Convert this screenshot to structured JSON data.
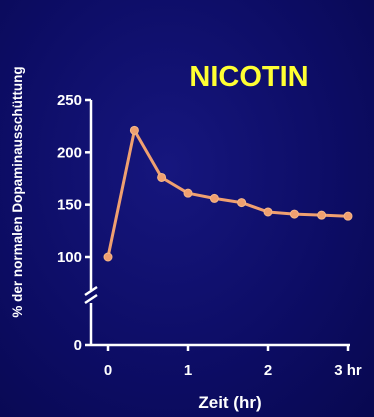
{
  "chart_data": {
    "type": "line",
    "title": "NICOTIN",
    "xlabel": "Zeit (hr)",
    "ylabel": "% der normalen Dopaminausschüttung",
    "x": [
      0,
      0.33,
      0.67,
      1.0,
      1.33,
      1.67,
      2.0,
      2.33,
      2.67,
      3.0
    ],
    "y": [
      100,
      221,
      176,
      161,
      156,
      152,
      143,
      141,
      140,
      139
    ],
    "xlim": [
      0,
      3
    ],
    "ylim": [
      100,
      250
    ],
    "y_axis_break": true,
    "x_ticks": [
      "0",
      "1",
      "2",
      "3 hr"
    ],
    "y_ticks": [
      "250",
      "200",
      "150",
      "100",
      "0"
    ],
    "grid": false,
    "series_color": "#f0a070",
    "title_color": "#ffff33",
    "background_color": "#0d0d66"
  }
}
